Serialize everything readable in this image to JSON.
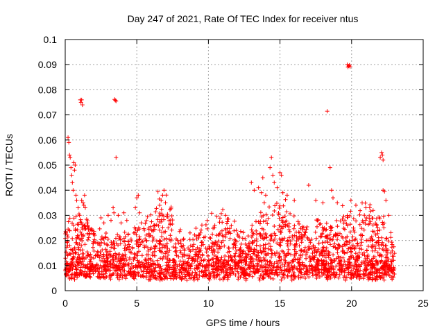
{
  "chart_data": {
    "type": "scatter",
    "title": "Day 247 of 2021, Rate Of TEC Index for receiver ntus",
    "xlabel": "GPS time / hours",
    "ylabel": "ROTI / TECUs",
    "xlim": [
      0,
      25
    ],
    "ylim": [
      0,
      0.1
    ],
    "grid": true,
    "marker": "+",
    "series_color": "#ff0000",
    "x_ticks": [
      "0",
      "5",
      "10",
      "15",
      "20",
      "25"
    ],
    "y_ticks": [
      "0",
      "0.01",
      "0.02",
      "0.03",
      "0.04",
      "0.05",
      "0.06",
      "0.07",
      "0.08",
      "0.09",
      "0.1"
    ],
    "series": [
      {
        "name": "ROTI",
        "data_range": [
          0.0,
          23.0
        ],
        "points": [
          [
            0.2,
            0.061
          ],
          [
            0.25,
            0.059
          ],
          [
            0.3,
            0.054
          ],
          [
            0.35,
            0.053
          ],
          [
            0.4,
            0.049
          ],
          [
            0.45,
            0.046
          ],
          [
            0.5,
            0.043
          ],
          [
            0.55,
            0.04
          ],
          [
            0.6,
            0.051
          ],
          [
            0.65,
            0.048
          ],
          [
            0.7,
            0.05
          ],
          [
            0.75,
            0.038
          ],
          [
            0.8,
            0.036
          ],
          [
            0.9,
            0.033
          ],
          [
            1.0,
            0.03
          ],
          [
            1.05,
            0.076
          ],
          [
            1.1,
            0.075
          ],
          [
            1.15,
            0.076
          ],
          [
            1.2,
            0.074
          ],
          [
            1.15,
            0.036
          ],
          [
            1.25,
            0.035
          ],
          [
            1.3,
            0.034
          ],
          [
            1.35,
            0.038
          ],
          [
            1.4,
            0.033
          ],
          [
            2.5,
            0.029
          ],
          [
            2.7,
            0.027
          ],
          [
            3.0,
            0.03
          ],
          [
            3.2,
            0.028
          ],
          [
            3.35,
            0.033
          ],
          [
            3.4,
            0.031
          ],
          [
            3.45,
            0.0762
          ],
          [
            3.5,
            0.0758
          ],
          [
            3.55,
            0.0755
          ],
          [
            3.55,
            0.053
          ],
          [
            3.7,
            0.03
          ],
          [
            3.9,
            0.027
          ],
          [
            4.1,
            0.031
          ],
          [
            4.3,
            0.028
          ],
          [
            4.9,
            0.033
          ],
          [
            5.0,
            0.037
          ],
          [
            5.1,
            0.038
          ],
          [
            5.2,
            0.031
          ],
          [
            6.6,
            0.034
          ],
          [
            6.7,
            0.036
          ],
          [
            6.8,
            0.038
          ],
          [
            6.9,
            0.04
          ],
          [
            7.0,
            0.035
          ],
          [
            13.0,
            0.043
          ],
          [
            13.2,
            0.04
          ],
          [
            13.5,
            0.041
          ],
          [
            13.7,
            0.039
          ],
          [
            13.8,
            0.045
          ],
          [
            13.9,
            0.035
          ],
          [
            14.0,
            0.038
          ],
          [
            14.3,
            0.049
          ],
          [
            14.4,
            0.053
          ],
          [
            14.5,
            0.046
          ],
          [
            14.6,
            0.043
          ],
          [
            14.8,
            0.041
          ],
          [
            15.0,
            0.047
          ],
          [
            15.1,
            0.046
          ],
          [
            15.2,
            0.039
          ],
          [
            15.5,
            0.038
          ],
          [
            16.0,
            0.036
          ],
          [
            17.0,
            0.042
          ],
          [
            17.5,
            0.036
          ],
          [
            18.0,
            0.035
          ],
          [
            18.3,
            0.0715
          ],
          [
            18.5,
            0.049
          ],
          [
            18.6,
            0.04
          ],
          [
            18.7,
            0.037
          ],
          [
            19.0,
            0.035
          ],
          [
            19.7,
            0.09
          ],
          [
            19.75,
            0.089
          ],
          [
            19.8,
            0.0895
          ],
          [
            19.85,
            0.0898
          ],
          [
            19.9,
            0.0892
          ],
          [
            19.95,
            0.036
          ],
          [
            20.3,
            0.034
          ],
          [
            21.0,
            0.033
          ],
          [
            21.5,
            0.032
          ],
          [
            22.0,
            0.053
          ],
          [
            22.1,
            0.055
          ],
          [
            22.15,
            0.054
          ],
          [
            22.2,
            0.052
          ],
          [
            22.2,
            0.04
          ],
          [
            22.3,
            0.0395
          ],
          [
            22.4,
            0.036
          ],
          [
            22.6,
            0.03
          ]
        ]
      }
    ]
  }
}
